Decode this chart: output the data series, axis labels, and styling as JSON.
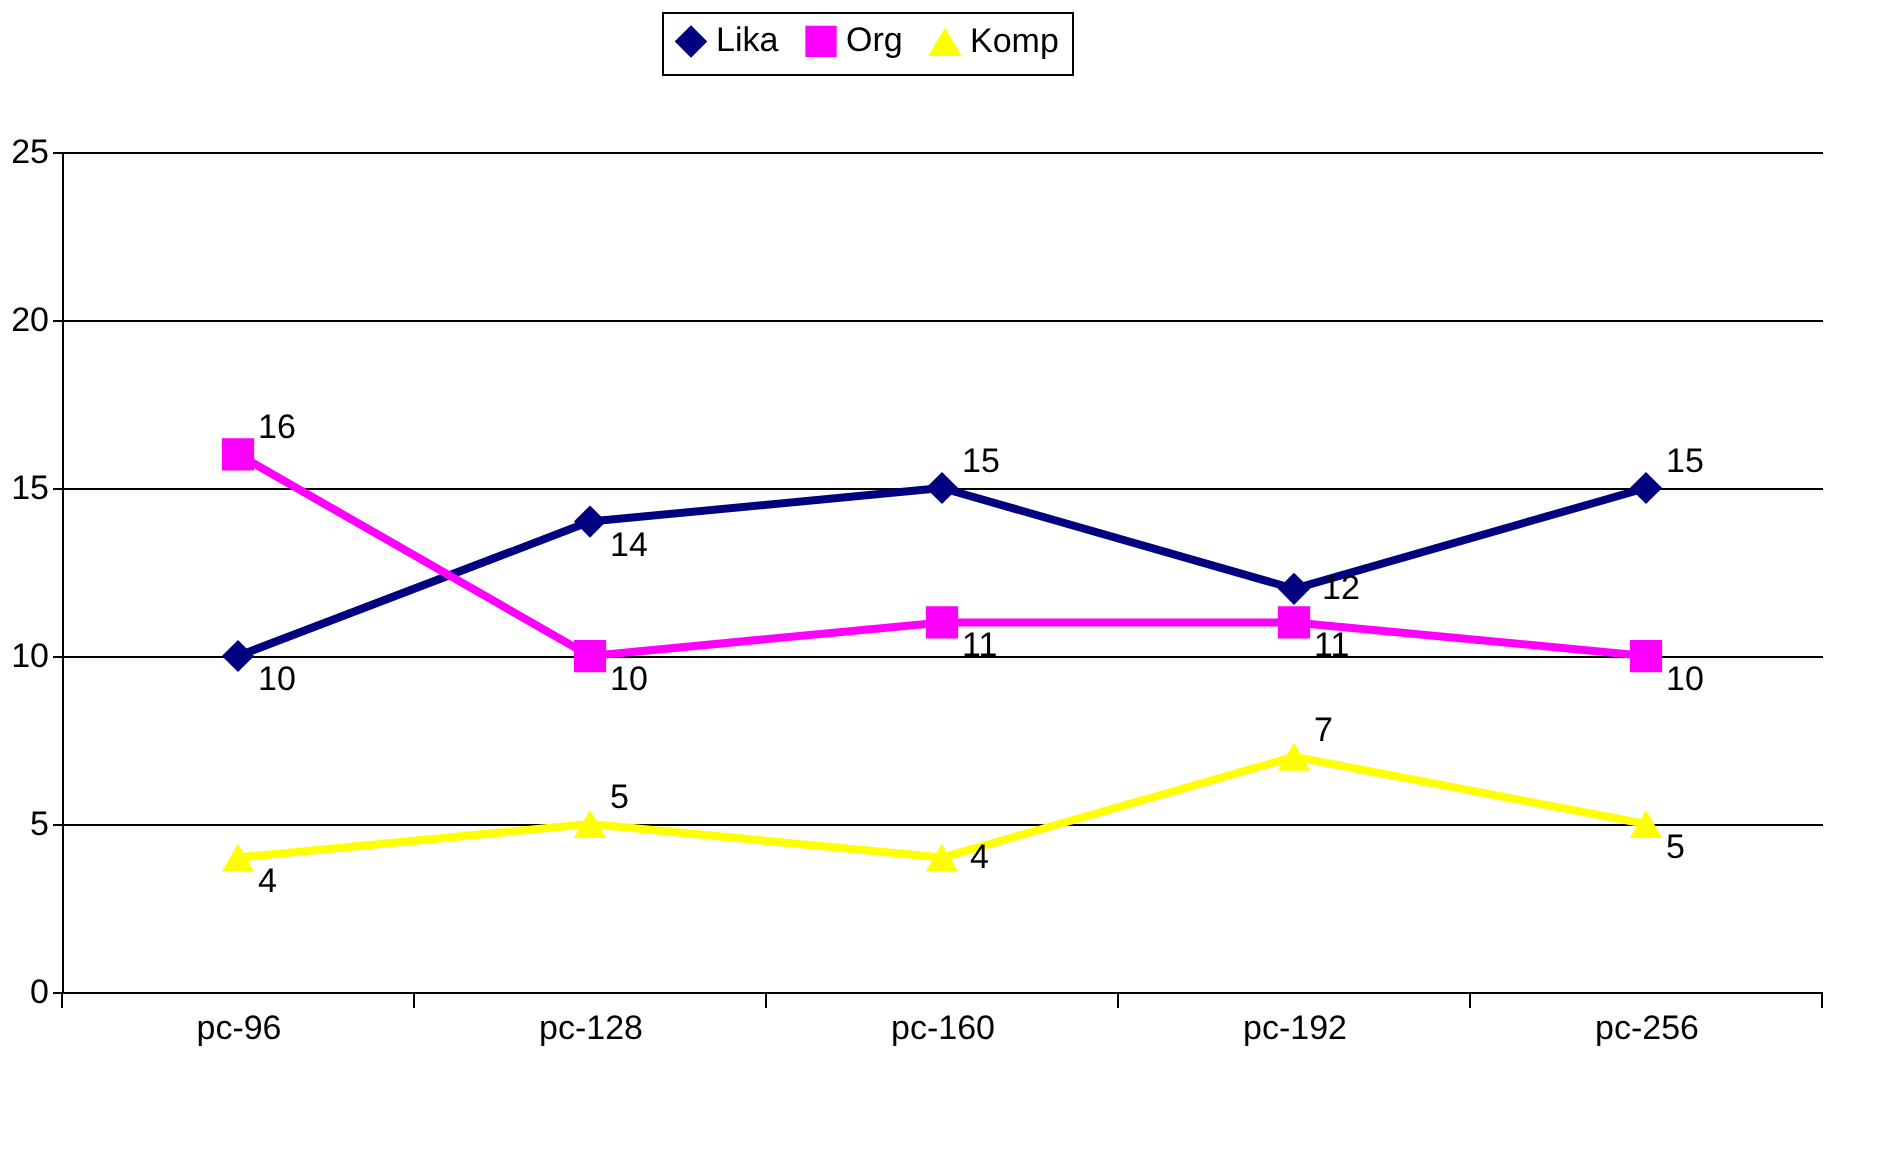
{
  "chart_data": {
    "type": "line",
    "categories": [
      "pc-96",
      "pc-128",
      "pc-160",
      "pc-192",
      "pc-256"
    ],
    "series": [
      {
        "name": "Lika",
        "color": "#000080",
        "marker": "diamond",
        "values": [
          10,
          14,
          15,
          12,
          15
        ]
      },
      {
        "name": "Org",
        "color": "#ff00ff",
        "marker": "square",
        "values": [
          16,
          10,
          11,
          11,
          10
        ]
      },
      {
        "name": "Komp",
        "color": "#ffff00",
        "marker": "triangle",
        "values": [
          4,
          5,
          4,
          7,
          5
        ]
      }
    ],
    "ylim": [
      0,
      25
    ],
    "yticks": [
      0,
      5,
      10,
      15,
      20,
      25
    ],
    "grid": "y",
    "legend": "top",
    "data_labels": true
  }
}
